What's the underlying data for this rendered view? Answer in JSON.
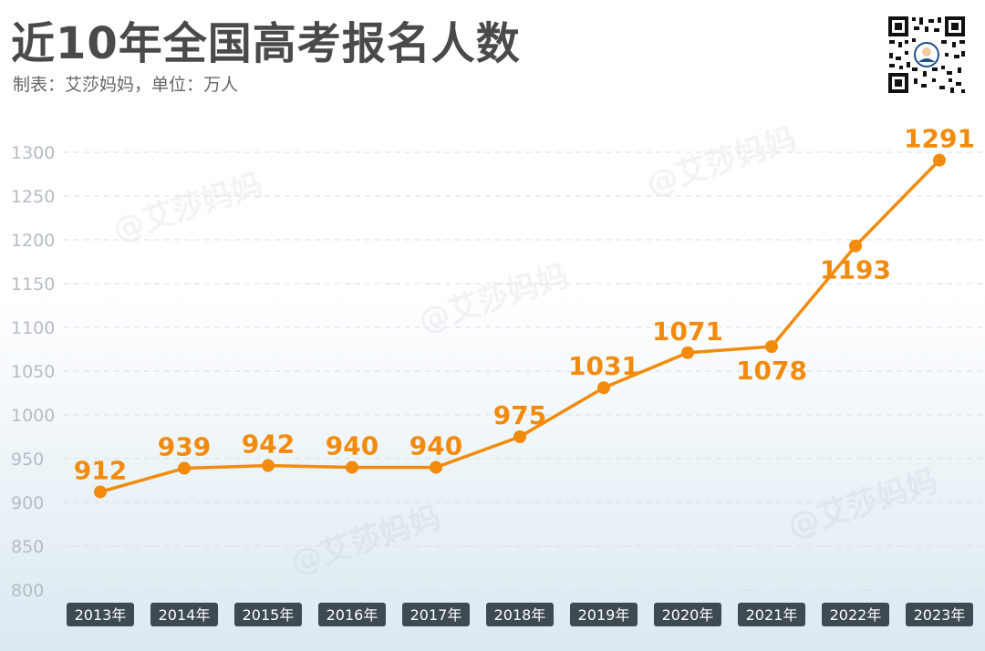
{
  "header": {
    "title": "近10年全国高考报名人数",
    "subtitle": "制表：艾莎妈妈，单位：万人"
  },
  "watermark": "@艾莎妈妈",
  "colors": {
    "line": "#f28b0c",
    "label": "#f28b0c",
    "tick": "#b5bcc3",
    "grid": "#d9dee3",
    "category_bg": "#3d4a52",
    "category_text": "#ffffff"
  },
  "icons": {
    "qr": "qr-code-icon"
  },
  "chart_data": {
    "type": "line",
    "title": "近10年全国高考报名人数",
    "subtitle": "制表：艾莎妈妈，单位：万人",
    "categories": [
      "2013年",
      "2014年",
      "2015年",
      "2016年",
      "2017年",
      "2018年",
      "2019年",
      "2020年",
      "2021年",
      "2022年",
      "2023年"
    ],
    "values": [
      912,
      939,
      942,
      940,
      940,
      975,
      1031,
      1071,
      1078,
      1193,
      1291
    ],
    "y_ticks": [
      800,
      850,
      900,
      950,
      1000,
      1050,
      1100,
      1150,
      1200,
      1250,
      1300
    ],
    "ylim": [
      800,
      1300
    ],
    "grid": true,
    "label_below": [
      false,
      false,
      false,
      false,
      false,
      false,
      false,
      false,
      true,
      true,
      false
    ]
  }
}
